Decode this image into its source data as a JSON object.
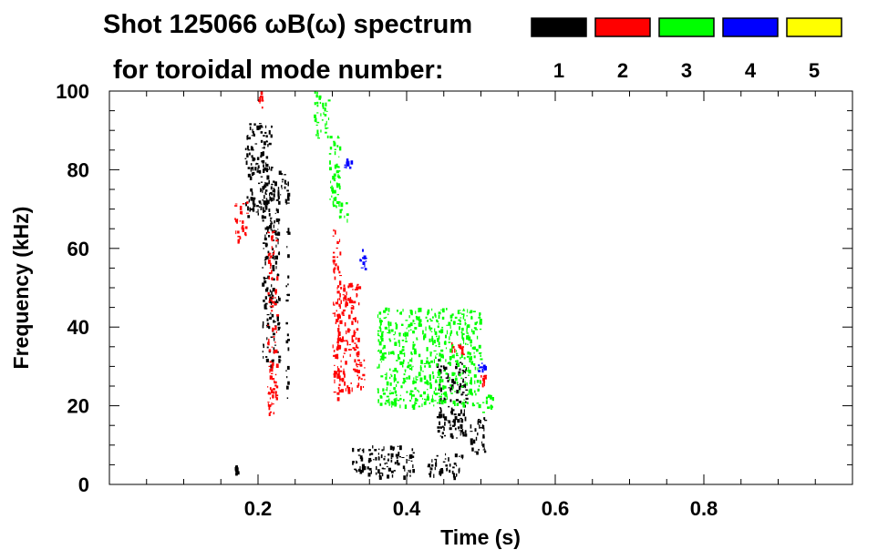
{
  "chart_data": {
    "type": "heatmap",
    "title": "Shot 125066 ωB(ω) spectrum",
    "subtitle": "for toroidal mode number:",
    "xlabel": "Time (s)",
    "ylabel": "Frequency (kHz)",
    "xlim": [
      0.0,
      1.0
    ],
    "ylim": [
      0,
      100
    ],
    "x_ticks": [
      0.2,
      0.4,
      0.6,
      0.8
    ],
    "x_tick_labels": [
      "0.2",
      "0.4",
      "0.6",
      "0.8"
    ],
    "y_ticks": [
      0,
      20,
      40,
      60,
      80,
      100
    ],
    "y_tick_labels": [
      "0",
      "20",
      "40",
      "60",
      "80",
      "100"
    ],
    "legend": [
      {
        "label": "1",
        "color": "#000000"
      },
      {
        "label": "2",
        "color": "#ff0000"
      },
      {
        "label": "3",
        "color": "#00ff00"
      },
      {
        "label": "4",
        "color": "#0000ff"
      },
      {
        "label": "5",
        "color": "#ffff00"
      }
    ],
    "series": [
      {
        "name": "n=1",
        "color": "#000000",
        "regions": [
          {
            "t": [
              0.182,
              0.218
            ],
            "f": [
              68,
              92
            ]
          },
          {
            "t": [
              0.205,
              0.228
            ],
            "f": [
              30,
              78
            ]
          },
          {
            "t": [
              0.225,
              0.24
            ],
            "f": [
              72,
              80
            ]
          },
          {
            "t": [
              0.237,
              0.24
            ],
            "f": [
              20,
              75
            ]
          },
          {
            "t": [
              0.168,
              0.172
            ],
            "f": [
              3,
              5
            ]
          },
          {
            "t": [
              0.325,
              0.41
            ],
            "f": [
              2,
              10
            ]
          },
          {
            "t": [
              0.425,
              0.475
            ],
            "f": [
              2,
              8
            ]
          },
          {
            "t": [
              0.44,
              0.48
            ],
            "f": [
              12,
              32
            ]
          },
          {
            "t": [
              0.485,
              0.505
            ],
            "f": [
              8,
              18
            ]
          }
        ]
      },
      {
        "name": "n=2",
        "color": "#ff0000",
        "regions": [
          {
            "t": [
              0.168,
              0.185
            ],
            "f": [
              62,
              72
            ]
          },
          {
            "t": [
              0.212,
              0.225
            ],
            "f": [
              18,
              65
            ]
          },
          {
            "t": [
              0.305,
              0.335
            ],
            "f": [
              24,
              52
            ]
          },
          {
            "t": [
              0.3,
              0.31
            ],
            "f": [
              20,
              65
            ]
          },
          {
            "t": [
              0.33,
              0.345
            ],
            "f": [
              25,
              32
            ]
          },
          {
            "t": [
              0.46,
              0.475
            ],
            "f": [
              33,
              37
            ]
          },
          {
            "t": [
              0.495,
              0.505
            ],
            "f": [
              25,
              28
            ]
          },
          {
            "t": [
              0.2,
              0.205
            ],
            "f": [
              96,
              100
            ]
          }
        ]
      },
      {
        "name": "n=3",
        "color": "#00ff00",
        "regions": [
          {
            "t": [
              0.275,
              0.295
            ],
            "f": [
              88,
              100
            ]
          },
          {
            "t": [
              0.295,
              0.31
            ],
            "f": [
              70,
              90
            ]
          },
          {
            "t": [
              0.305,
              0.32
            ],
            "f": [
              67,
              72
            ]
          },
          {
            "t": [
              0.36,
              0.5
            ],
            "f": [
              20,
              45
            ]
          },
          {
            "t": [
              0.5,
              0.515
            ],
            "f": [
              18,
              23
            ]
          }
        ]
      },
      {
        "name": "n=4",
        "color": "#0000ff",
        "regions": [
          {
            "t": [
              0.315,
              0.325
            ],
            "f": [
              80,
              83
            ]
          },
          {
            "t": [
              0.335,
              0.345
            ],
            "f": [
              55,
              60
            ]
          },
          {
            "t": [
              0.495,
              0.505
            ],
            "f": [
              29,
              31
            ]
          }
        ]
      },
      {
        "name": "n=5",
        "color": "#ffff00",
        "regions": []
      }
    ]
  }
}
